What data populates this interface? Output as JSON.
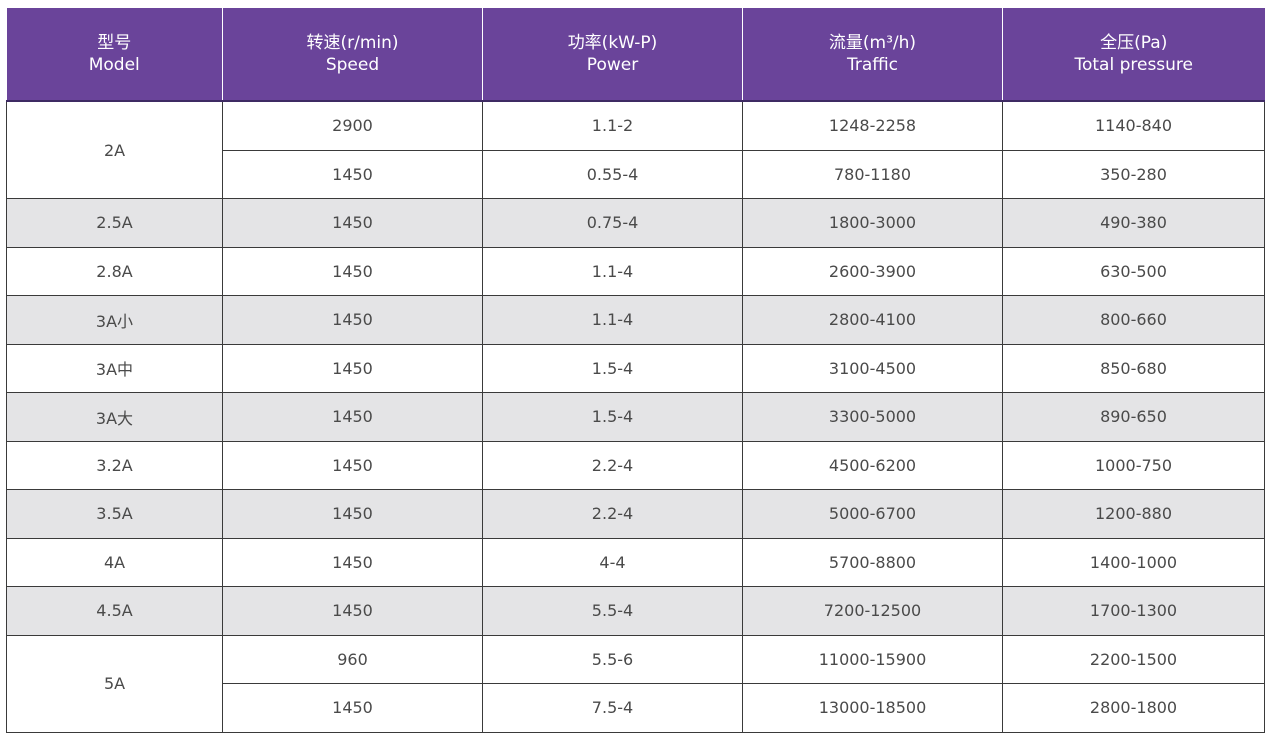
{
  "table": {
    "headers": [
      {
        "zh": "型号",
        "en": "Model"
      },
      {
        "zh": "转速(r/min)",
        "en": "Speed"
      },
      {
        "zh": "功率(kW-P)",
        "en": "Power"
      },
      {
        "zh": "流量(m³/h)",
        "en": "Traffic"
      },
      {
        "zh": "全压(Pa)",
        "en": "Total pressure"
      }
    ],
    "groups": [
      {
        "model": "2A",
        "rows": [
          {
            "speed": "2900",
            "power": "1.1-2",
            "traffic": "1248-2258",
            "pressure": "1140-840"
          },
          {
            "speed": "1450",
            "power": "0.55-4",
            "traffic": "780-1180",
            "pressure": "350-280"
          }
        ]
      },
      {
        "model": "2.5A",
        "rows": [
          {
            "speed": "1450",
            "power": "0.75-4",
            "traffic": "1800-3000",
            "pressure": "490-380"
          }
        ]
      },
      {
        "model": "2.8A",
        "rows": [
          {
            "speed": "1450",
            "power": "1.1-4",
            "traffic": "2600-3900",
            "pressure": "630-500"
          }
        ]
      },
      {
        "model": "3A小",
        "rows": [
          {
            "speed": "1450",
            "power": "1.1-4",
            "traffic": "2800-4100",
            "pressure": "800-660"
          }
        ]
      },
      {
        "model": "3A中",
        "rows": [
          {
            "speed": "1450",
            "power": "1.5-4",
            "traffic": "3100-4500",
            "pressure": "850-680"
          }
        ]
      },
      {
        "model": "3A大",
        "rows": [
          {
            "speed": "1450",
            "power": "1.5-4",
            "traffic": "3300-5000",
            "pressure": "890-650"
          }
        ]
      },
      {
        "model": "3.2A",
        "rows": [
          {
            "speed": "1450",
            "power": "2.2-4",
            "traffic": "4500-6200",
            "pressure": "1000-750"
          }
        ]
      },
      {
        "model": "3.5A",
        "rows": [
          {
            "speed": "1450",
            "power": "2.2-4",
            "traffic": "5000-6700",
            "pressure": "1200-880"
          }
        ]
      },
      {
        "model": "4A",
        "rows": [
          {
            "speed": "1450",
            "power": "4-4",
            "traffic": "5700-8800",
            "pressure": "1400-1000"
          }
        ]
      },
      {
        "model": "4.5A",
        "rows": [
          {
            "speed": "1450",
            "power": "5.5-4",
            "traffic": "7200-12500",
            "pressure": "1700-1300"
          }
        ]
      },
      {
        "model": "5A",
        "rows": [
          {
            "speed": "960",
            "power": "5.5-6",
            "traffic": "11000-15900",
            "pressure": "2200-1500"
          },
          {
            "speed": "1450",
            "power": "7.5-4",
            "traffic": "13000-18500",
            "pressure": "2800-1800"
          }
        ]
      }
    ]
  }
}
